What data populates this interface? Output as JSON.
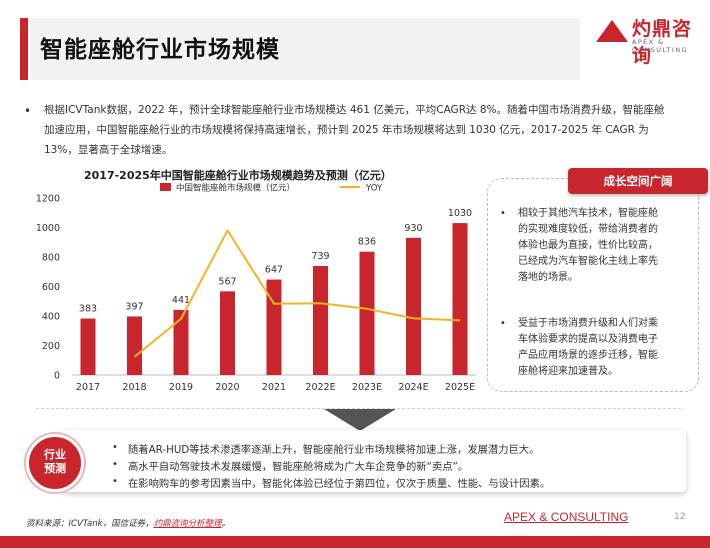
{
  "header": {
    "title": "智能座舱行业市场规模",
    "logo_name": "灼鼎咨询",
    "logo_sub": "APEX & CONSULTING"
  },
  "intro_text": "根据ICVTank数据，2022 年，预计全球智能座舱行业市场规模达 461 亿美元，平均CAGR达 8%。随着中国市场消费升级，智能座舱加速应用，中国智能座舱行业的市场规模将保持高速增长，预计到 2025 年市场规模将达到 1030 亿元，2017-2025 年 CAGR 为 13%，显著高于全球增速。",
  "chart_data": {
    "type": "bar",
    "title": "2017-2025年中国智能座舱行业市场规模趋势及预测（亿元）",
    "categories": [
      "2017",
      "2018",
      "2019",
      "2020",
      "2021",
      "2022E",
      "2023E",
      "2024E",
      "2025E"
    ],
    "series": [
      {
        "name": "中国智能座舱市场规模（亿元）",
        "type": "bar",
        "color": "#c8262c",
        "values": [
          383,
          397,
          441,
          567,
          647,
          739,
          836,
          930,
          1030
        ]
      },
      {
        "name": "YOY",
        "type": "line",
        "color": "#f5b324",
        "values": [
          null,
          0.036,
          0.111,
          0.286,
          0.141,
          0.142,
          0.131,
          0.112,
          0.108
        ]
      }
    ],
    "ylim": [
      0,
      1200
    ],
    "yticks": [
      0,
      200,
      400,
      600,
      800,
      1000,
      1200
    ],
    "legend_position": "top",
    "grid": false
  },
  "side": {
    "heading": "成长空间广阔",
    "bullets": [
      "相较于其他汽车技术，智能座舱的实现难度较低，带给消费者的体验也最为直接，性价比较高，已经成为汽车智能化主线上率先落地的场景。",
      "受益于市场消费升级和人们对乘车体验要求的提高以及消费电子产品应用场景的逐步迁移，智能座舱将迎来加速普及。"
    ]
  },
  "industry": {
    "label_line1": "行业",
    "label_line2": "预测",
    "bullets": [
      "随着AR-HUD等技术渗透率逐渐上升，智能座舱行业市场规模将加速上涨，发展潜力巨大。",
      "高水平自动驾驶技术发展缓慢，智能座舱将成为广大车企竞争的新“卖点”。",
      "在影响购车的参考因素当中，智能化体验已经位于第四位，仅次于质量、性能、与设计因素。"
    ]
  },
  "footer": {
    "source_prefix": "资料来源：ICVTank，国信证券，",
    "source_link": "灼鼎咨询分析整理",
    "source_suffix": "。",
    "brand": "APEX & CONSULTING",
    "page_number": "12"
  },
  "colors": {
    "accent": "#c8262c",
    "line": "#f5b324",
    "panel": "#f2f2f2"
  }
}
